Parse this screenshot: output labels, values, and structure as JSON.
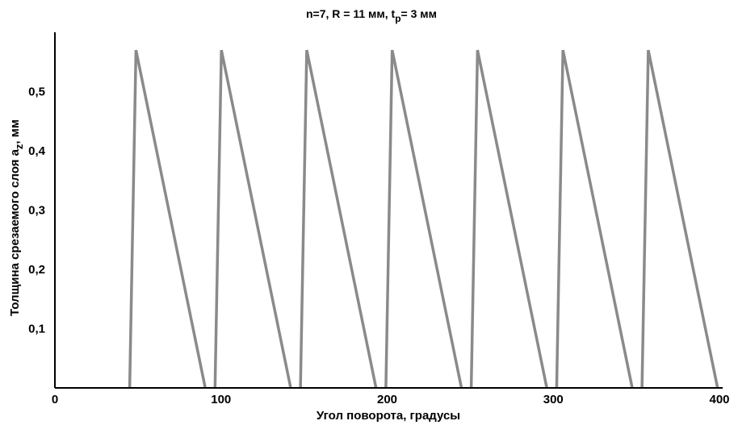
{
  "chart_data": {
    "type": "line",
    "title_parts": {
      "main": "n=7, R = 11 мм, t",
      "sub": "p",
      "tail": "= 3 мм"
    },
    "xlabel": "Угол поворота, градусы",
    "ylabel_parts": {
      "main": "Толщина срезаемого слоя a",
      "sub": "z",
      "tail": ", мм"
    },
    "xlim": [
      0,
      400
    ],
    "ylim": [
      0,
      0.6
    ],
    "xticks": [
      {
        "value": 0,
        "label": "0"
      },
      {
        "value": 100,
        "label": "100"
      },
      {
        "value": 200,
        "label": "200"
      },
      {
        "value": 300,
        "label": "300"
      },
      {
        "value": 400,
        "label": "400"
      }
    ],
    "yticks": [
      {
        "value": 0.1,
        "label": "0,1"
      },
      {
        "value": 0.2,
        "label": "0,2"
      },
      {
        "value": 0.3,
        "label": "0,3"
      },
      {
        "value": 0.4,
        "label": "0,4"
      },
      {
        "value": 0.5,
        "label": "0,5"
      }
    ],
    "grid": false,
    "series": [
      {
        "color": "#8a8a8a",
        "segments": [
          [
            [
              45.0,
              0
            ],
            [
              48.8,
              0.57
            ],
            [
              90.5,
              0
            ]
          ],
          [
            [
              96.4,
              0
            ],
            [
              100.2,
              0.57
            ],
            [
              141.9,
              0
            ]
          ],
          [
            [
              147.8,
              0
            ],
            [
              151.6,
              0.57
            ],
            [
              193.3,
              0
            ]
          ],
          [
            [
              199.2,
              0
            ],
            [
              203.0,
              0.57
            ],
            [
              244.7,
              0
            ]
          ],
          [
            [
              250.6,
              0
            ],
            [
              254.4,
              0.57
            ],
            [
              296.1,
              0
            ]
          ],
          [
            [
              302.0,
              0
            ],
            [
              305.8,
              0.57
            ],
            [
              347.5,
              0
            ]
          ],
          [
            [
              353.4,
              0
            ],
            [
              357.2,
              0.57
            ],
            [
              398.9,
              0
            ]
          ]
        ]
      }
    ]
  }
}
